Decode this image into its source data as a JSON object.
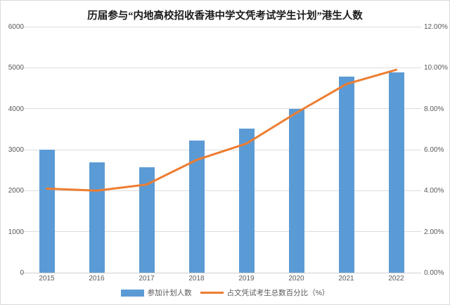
{
  "chart_data": {
    "type": "bar",
    "subtype": "bar+line combo, dual axis",
    "title": "历届参与“内地高校招收香港中学文凭考试学生计划”港生人数",
    "categories": [
      "2015",
      "2016",
      "2017",
      "2018",
      "2019",
      "2020",
      "2021",
      "2022"
    ],
    "series": [
      {
        "name": "参加计划人数",
        "type": "bar",
        "axis": "left",
        "color": "#5B9BD5",
        "values": [
          3000,
          2700,
          2580,
          3220,
          3520,
          4000,
          4780,
          4890
        ]
      },
      {
        "name": "占文凭试考生总数百分比（%）",
        "type": "line",
        "axis": "right",
        "color": "#ED7D31",
        "values": [
          4.1,
          4.0,
          4.3,
          5.5,
          6.3,
          7.8,
          9.2,
          9.9
        ]
      }
    ],
    "left_axis": {
      "min": 0,
      "max": 6000,
      "step": 1000,
      "ticks": [
        {
          "value": 6000,
          "label": "6000"
        },
        {
          "value": 5000,
          "label": "5000"
        },
        {
          "value": 4000,
          "label": "4000"
        },
        {
          "value": 3000,
          "label": "3000"
        },
        {
          "value": 2000,
          "label": "2000"
        },
        {
          "value": 1000,
          "label": "1000"
        },
        {
          "value": 0,
          "label": "0"
        }
      ]
    },
    "right_axis": {
      "min": 0,
      "max": 12,
      "step": 2,
      "ticks": [
        {
          "value": 12,
          "label": "12.00%"
        },
        {
          "value": 10,
          "label": "10.00%"
        },
        {
          "value": 8,
          "label": "8.00%"
        },
        {
          "value": 6,
          "label": "6.00%"
        },
        {
          "value": 4,
          "label": "4.00%"
        },
        {
          "value": 2,
          "label": "2.00%"
        },
        {
          "value": 0,
          "label": "0.00%"
        }
      ]
    },
    "legend_position": "bottom",
    "grid": true
  },
  "style": {
    "background": "#FFFFFF",
    "border_color": "#D9D9D9",
    "gridline_color": "#DCDCDC",
    "baseline_color": "#D0D0D0",
    "axis_label_color": "#595959",
    "bar_color": "#5B9BD5",
    "line_color": "#ED7D31"
  }
}
